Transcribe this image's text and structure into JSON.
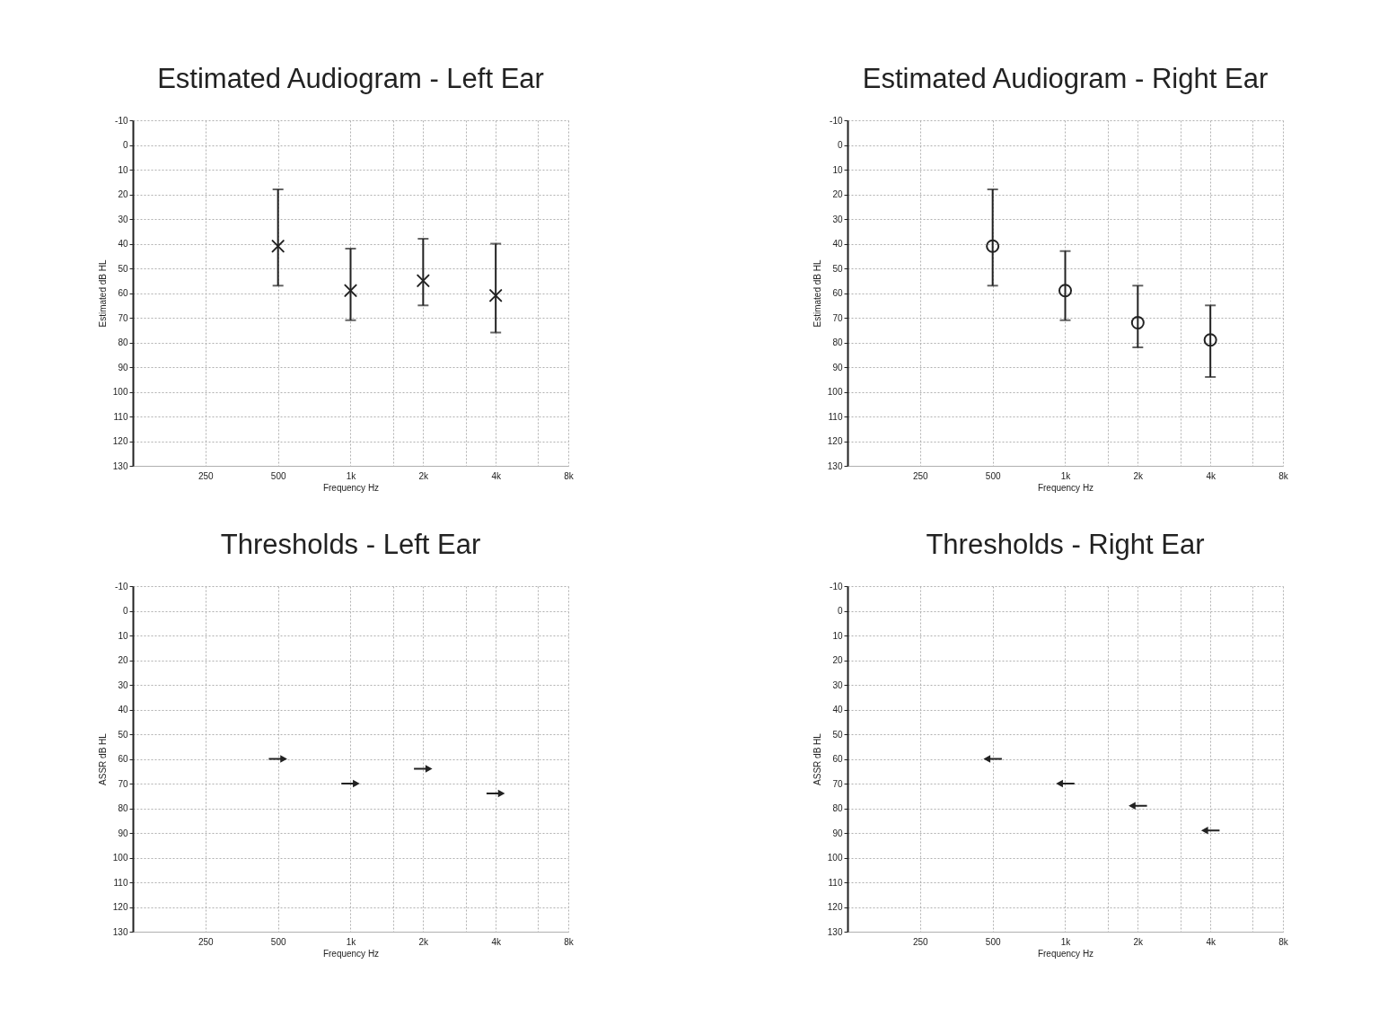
{
  "chart_data": [
    {
      "type": "scatter",
      "title": "Estimated Audiogram - Left Ear",
      "xlabel": "Frequency Hz",
      "ylabel": "Estimated dB HL",
      "x": [
        500,
        1000,
        2000,
        4000
      ],
      "series": [
        {
          "color": "#222222",
          "values": [
            41,
            59,
            55,
            61
          ],
          "errors": [
            [
              18,
              57
            ],
            [
              42,
              71
            ],
            [
              38,
              65
            ],
            [
              40,
              76
            ]
          ]
        }
      ],
      "marker": "cross",
      "log": "x",
      "xlim": [
        125,
        8000
      ],
      "xticks": [
        250,
        500,
        {
          "value": 1000,
          "label": "1k"
        },
        {
          "value": 1500,
          "label": null
        },
        {
          "value": 2000,
          "label": "2k"
        },
        {
          "value": 3000,
          "label": null
        },
        {
          "value": 4000,
          "label": "4k"
        },
        {
          "value": 6000,
          "label": null
        },
        {
          "value": 8000,
          "label": "8k"
        }
      ],
      "ylim": [
        130,
        -10
      ],
      "yticks": [
        -10,
        0,
        10,
        20,
        30,
        40,
        50,
        60,
        70,
        80,
        90,
        100,
        110,
        120,
        130
      ],
      "grid": true
    },
    {
      "type": "scatter",
      "title": "Estimated Audiogram - Right Ear",
      "xlabel": "Frequency Hz",
      "ylabel": "Estimated dB HL",
      "x": [
        500,
        1000,
        2000,
        4000
      ],
      "series": [
        {
          "color": "#222222",
          "values": [
            41,
            59,
            72,
            79
          ],
          "errors": [
            [
              18,
              57
            ],
            [
              43,
              71
            ],
            [
              57,
              82
            ],
            [
              65,
              94
            ]
          ]
        }
      ],
      "marker": "circle",
      "log": "x",
      "xlim": [
        125,
        8000
      ],
      "xticks": [
        250,
        500,
        {
          "value": 1000,
          "label": "1k"
        },
        {
          "value": 1500,
          "label": null
        },
        {
          "value": 2000,
          "label": "2k"
        },
        {
          "value": 3000,
          "label": null
        },
        {
          "value": 4000,
          "label": "4k"
        },
        {
          "value": 6000,
          "label": null
        },
        {
          "value": 8000,
          "label": "8k"
        }
      ],
      "ylim": [
        130,
        -10
      ],
      "yticks": [
        -10,
        0,
        10,
        20,
        30,
        40,
        50,
        60,
        70,
        80,
        90,
        100,
        110,
        120,
        130
      ],
      "grid": true
    },
    {
      "type": "scatter",
      "title": "Thresholds - Left Ear",
      "xlabel": "Frequency Hz",
      "ylabel": "ASSR dB HL",
      "x": [
        500,
        1000,
        2000,
        4000
      ],
      "series": [
        {
          "color": "#222222",
          "values": [
            60,
            70,
            64,
            74
          ]
        }
      ],
      "marker": "triangle",
      "log": "x",
      "xlim": [
        125,
        8000
      ],
      "xticks": [
        250,
        500,
        {
          "value": 1000,
          "label": "1k"
        },
        {
          "value": 1500,
          "label": null
        },
        {
          "value": 2000,
          "label": "2k"
        },
        {
          "value": 3000,
          "label": null
        },
        {
          "value": 4000,
          "label": "4k"
        },
        {
          "value": 6000,
          "label": null
        },
        {
          "value": 8000,
          "label": "8k"
        }
      ],
      "ylim": [
        130,
        -10
      ],
      "yticks": [
        -10,
        0,
        10,
        20,
        30,
        40,
        50,
        60,
        70,
        80,
        90,
        100,
        110,
        120,
        130
      ],
      "grid": true
    },
    {
      "type": "scatter",
      "title": "Thresholds - Right Ear",
      "xlabel": "Frequency Hz",
      "ylabel": "ASSR dB HL",
      "x": [
        500,
        1000,
        2000,
        4000
      ],
      "series": [
        {
          "color": "#222222",
          "values": [
            60,
            70,
            79,
            89
          ]
        }
      ],
      "marker": "triangle",
      "log": "x",
      "xlim": [
        125,
        8000
      ],
      "xticks": [
        250,
        500,
        {
          "value": 1000,
          "label": "1k"
        },
        {
          "value": 1500,
          "label": null
        },
        {
          "value": 2000,
          "label": "2k"
        },
        {
          "value": 3000,
          "label": null
        },
        {
          "value": 4000,
          "label": "4k"
        },
        {
          "value": 6000,
          "label": null
        },
        {
          "value": 8000,
          "label": "8k"
        }
      ],
      "ylim": [
        130,
        -10
      ],
      "yticks": [
        -10,
        0,
        10,
        20,
        30,
        40,
        50,
        60,
        70,
        80,
        90,
        100,
        110,
        120,
        130
      ],
      "grid": true
    }
  ]
}
